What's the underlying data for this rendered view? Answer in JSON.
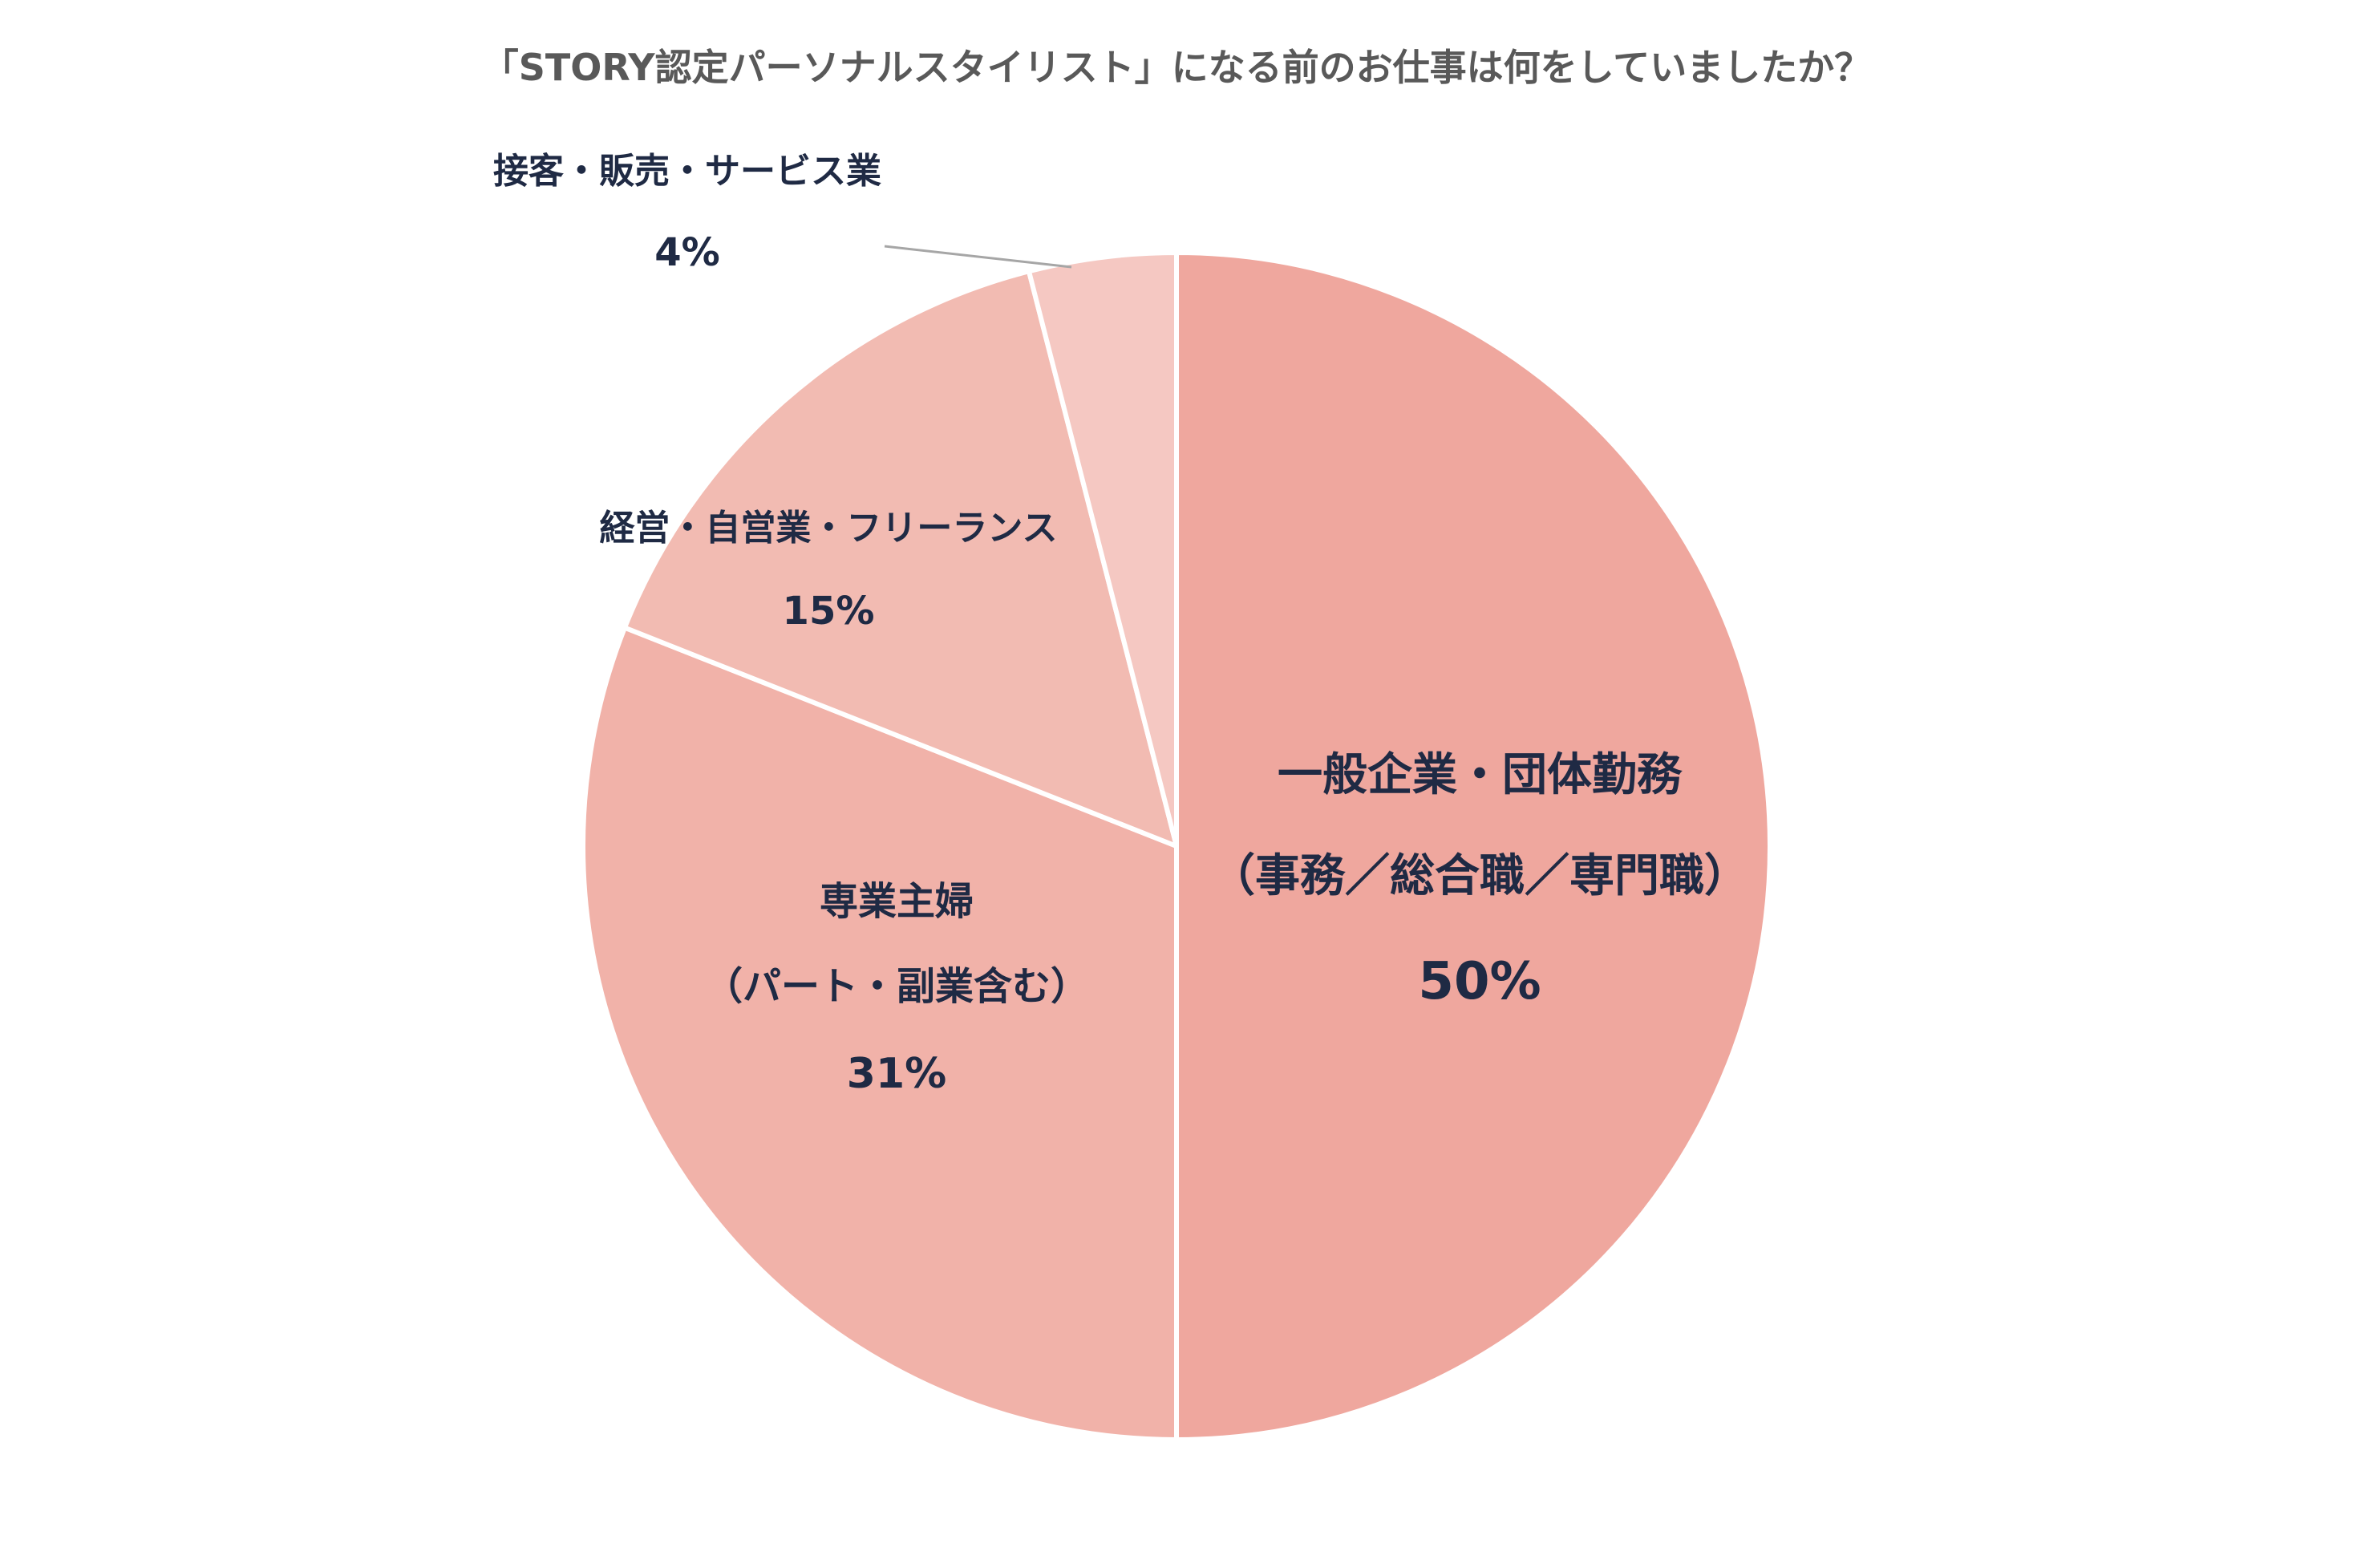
{
  "chart_data": {
    "type": "pie",
    "title": "「STORY認定パーソナルスタイリスト」になる前のお仕事は何をしていましたか？",
    "slices": [
      {
        "label_lines": [
          "一般企業・団体勤務",
          "（事務／総合職／専門職）"
        ],
        "value": 50,
        "value_label": "50%",
        "color": "#EFA79E"
      },
      {
        "label_lines": [
          "専業主婦",
          "（パート・副業含む）"
        ],
        "value": 31,
        "value_label": "31%",
        "color": "#F1B2A9"
      },
      {
        "label_lines": [
          "経営・自営業・フリーランス"
        ],
        "value": 15,
        "value_label": "15%",
        "color": "#F2BBB2"
      },
      {
        "label_lines": [
          "接客・販売・サービス業"
        ],
        "value": 4,
        "value_label": "4%",
        "color": "#F5C8C2"
      }
    ],
    "start_angle": "12 o'clock",
    "direction": "clockwise",
    "legend": "none"
  }
}
